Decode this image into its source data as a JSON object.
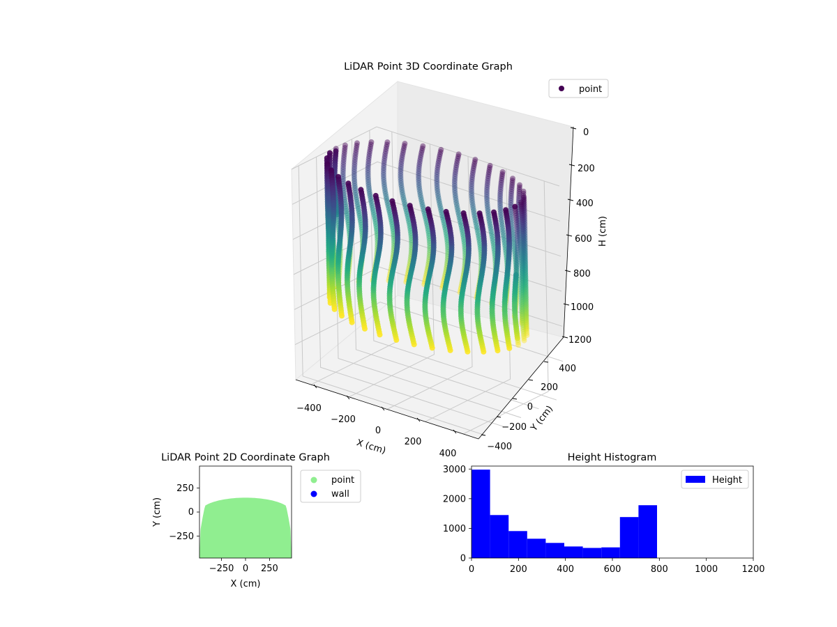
{
  "chart_data": [
    {
      "type": "scatter",
      "projection": "3d",
      "title": "LiDAR Point 3D Coordinate Graph",
      "xlabel": "X (cm)",
      "ylabel": "Y (cm)",
      "zlabel": "H (cm)",
      "xlim": [
        -480,
        480
      ],
      "ylim": [
        -480,
        480
      ],
      "zlim": [
        0,
        1200
      ],
      "z_inverted": true,
      "x_ticks": [
        "−400",
        "−200",
        "0",
        "200",
        "400"
      ],
      "y_ticks": [
        "−400",
        "−200",
        "0",
        "200",
        "400"
      ],
      "z_ticks": [
        "0",
        "200",
        "400",
        "600",
        "800",
        "1000",
        "1200"
      ],
      "colormap": "viridis",
      "shape": "cylinder wall scanned in vertical stripes, radius ~470 cm, height ~0–780 cm",
      "series": [
        {
          "name": "point",
          "color": "#440154"
        }
      ],
      "legend": "top-right",
      "grid": true
    },
    {
      "type": "scatter",
      "title": "LiDAR Point 2D Coordinate Graph",
      "xlabel": "X (cm)",
      "ylabel": "Y (cm)",
      "xlim": [
        -480,
        480
      ],
      "ylim": [
        -480,
        480
      ],
      "x_ticks": [
        "−250",
        "0",
        "250"
      ],
      "y_ticks": [
        "−250",
        "0",
        "250"
      ],
      "series": [
        {
          "name": "point",
          "color": "#90ee90"
        },
        {
          "name": "wall",
          "color": "#0000ff"
        }
      ],
      "legend": "outside-right",
      "grid": false
    },
    {
      "type": "bar",
      "subtype": "histogram",
      "title": "Height Histogram",
      "xlabel": "",
      "ylabel": "",
      "xlim": [
        0,
        1200
      ],
      "ylim": [
        0,
        3100
      ],
      "x_ticks": [
        "0",
        "200",
        "400",
        "600",
        "800",
        "1000",
        "1200"
      ],
      "y_ticks": [
        "0",
        "1000",
        "2000",
        "3000"
      ],
      "bin_edges": [
        0,
        79,
        158,
        237,
        316,
        395,
        474,
        553,
        632,
        711,
        790
      ],
      "values": [
        2980,
        1450,
        910,
        650,
        510,
        390,
        340,
        360,
        1380,
        1780
      ],
      "series": [
        {
          "name": "Height",
          "color": "#0000ff"
        }
      ],
      "legend": "top-right",
      "grid": false
    }
  ]
}
